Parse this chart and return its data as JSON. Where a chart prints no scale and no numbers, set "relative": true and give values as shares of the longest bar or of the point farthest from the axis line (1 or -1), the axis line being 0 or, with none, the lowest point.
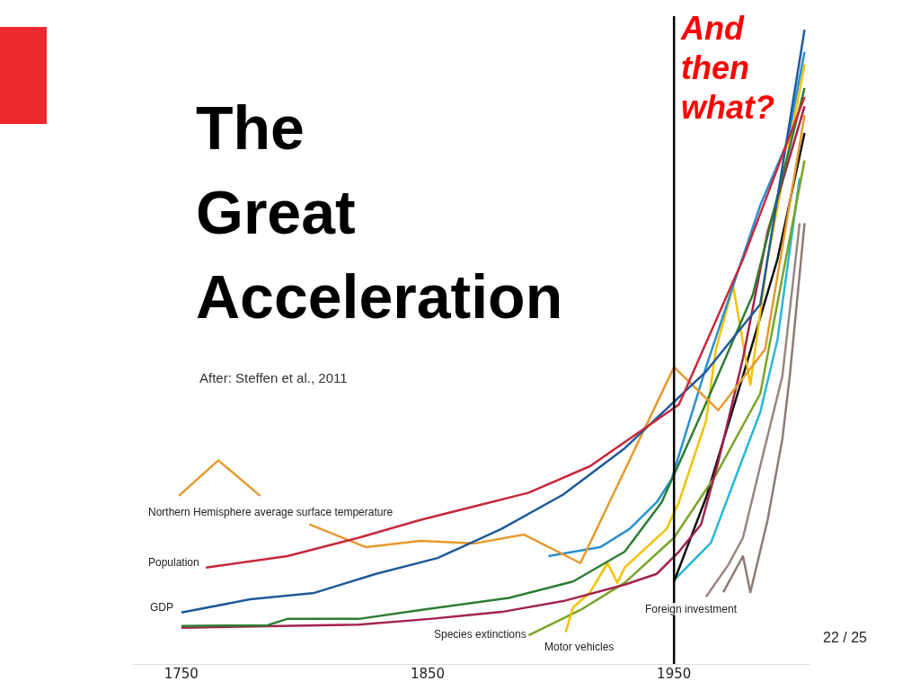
{
  "chart_data": {
    "type": "line",
    "title": "The Great Acceleration",
    "subtitle": "After: Steffen et al., 2011",
    "relative": true,
    "xlim": [
      1730,
      2005
    ],
    "xticks": [
      1750,
      1850,
      1950
    ],
    "series": [
      {
        "color": "#c8283c",
        "x": [
          1760,
          1793,
          1822,
          1847,
          1891,
          1916,
          1952,
          1978,
          2003
        ],
        "values": [
          0.152,
          0.17,
          0.199,
          0.227,
          0.27,
          0.312,
          0.409,
          0.638,
          0.894
        ]
      },
      {
        "color": "#1f5a9a",
        "x": [
          1750,
          1778,
          1804,
          1829,
          1854,
          1880,
          1905,
          1930,
          1963,
          1985,
          2003
        ],
        "values": [
          0.081,
          0.102,
          0.112,
          0.142,
          0.167,
          0.213,
          0.267,
          0.34,
          0.461,
          0.567,
          1
        ]
      },
      {
        "color": "#e69a2c",
        "x": [
          1749,
          1765,
          1782,
          1792,
          1802,
          1825,
          1847,
          1869,
          1889,
          1912,
          1950,
          1968,
          1987,
          2003
        ],
        "values": [
          0.265,
          0.321,
          0.265,
          null,
          0.22,
          0.184,
          0.194,
          0.19,
          0.204,
          0.159,
          0.468,
          0.4,
          0.496,
          0.865
        ]
      },
      {
        "color": "#2e7d32",
        "x": [
          1750,
          1785,
          1793,
          1822,
          1847,
          1883,
          1909,
          1930,
          1945,
          1963,
          1982,
          2003
        ],
        "values": [
          0.06,
          0.061,
          0.071,
          0.071,
          0.085,
          0.104,
          0.13,
          0.177,
          0.255,
          0.411,
          0.582,
          0.908
        ]
      },
      {
        "color": "#a3234a",
        "x": [
          1750,
          1822,
          1851,
          1880,
          1905,
          1930,
          1943,
          1952,
          1961,
          1968,
          1978,
          1988,
          2003
        ],
        "values": [
          0.057,
          0.062,
          0.071,
          0.082,
          0.099,
          0.125,
          0.142,
          0.177,
          0.22,
          0.319,
          0.482,
          0.681,
          0.879
        ]
      },
      {
        "color": "#2a8fd0",
        "x": [
          1899,
          1920,
          1932,
          1943,
          1949,
          1963,
          1974,
          1985,
          1996,
          2003
        ],
        "values": [
          0.17,
          0.184,
          0.213,
          0.255,
          0.291,
          0.468,
          0.596,
          0.723,
          0.823,
          0.965
        ]
      },
      {
        "color": "#f2c200",
        "x": [
          1906,
          1909,
          1916,
          1923,
          1927,
          1930,
          1947,
          1952,
          1963,
          1967,
          1974,
          1981,
          1988,
          2003
        ],
        "values": [
          0.05,
          0.089,
          0.113,
          0.159,
          0.128,
          0.152,
          0.213,
          0.255,
          0.383,
          0.496,
          0.596,
          0.44,
          0.638,
          0.945
        ]
      },
      {
        "color": "#7aa329",
        "x": [
          1891,
          1912,
          1930,
          1950,
          1967,
          1985,
          2003
        ],
        "values": [
          0.045,
          0.085,
          0.128,
          0.199,
          0.298,
          0.426,
          0.794
        ]
      },
      {
        "color": "#111111",
        "x": [
          1950,
          1963,
          1978,
          1992,
          2003
        ],
        "values": [
          0.13,
          0.262,
          0.454,
          0.638,
          0.837
        ]
      },
      {
        "color": "#29b6d9",
        "x": [
          1950,
          1965,
          1974,
          1985,
          1992,
          2001
        ],
        "values": [
          0.132,
          0.191,
          0.284,
          0.397,
          0.511,
          0.766
        ]
      },
      {
        "color": "#9a8580",
        "x": [
          1963,
          1972,
          1978,
          1985,
          1994,
          2001
        ],
        "values": [
          0.106,
          0.156,
          0.199,
          0.312,
          0.454,
          0.695
        ]
      },
      {
        "color": "#8c7a76",
        "x": [
          1970,
          1978,
          1981,
          1988,
          1994,
          1997,
          2003
        ],
        "values": [
          0.113,
          0.17,
          0.113,
          0.227,
          0.355,
          0.454,
          0.695
        ]
      }
    ],
    "ref_lines": [
      {
        "axis": "x",
        "value": 1950,
        "color": "#000000"
      }
    ],
    "annotations": [
      "And then what?",
      "22 / 25",
      "Northern Hemisphere average surface temperature",
      "Population",
      "GDP",
      "Species extinctions",
      "Motor vehicles",
      "Foreign investment"
    ]
  }
}
